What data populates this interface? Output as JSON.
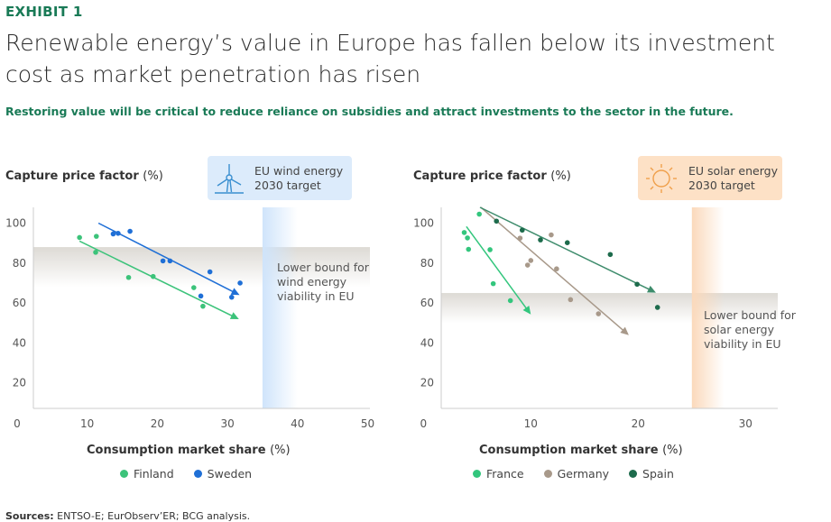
{
  "header": {
    "exhibit": "EXHIBIT 1",
    "title": "Renewable energy’s value in Europe has fallen below its investment cost as market penetration has risen",
    "subtitle": "Restoring value will be critical to reduce reliance on subsidies and attract investments to the sector in the future."
  },
  "sources": {
    "label": "Sources:",
    "text": " ENTSO-E; EurObserv’ER; BCG analysis."
  },
  "colors": {
    "brand_green": "#197a56",
    "finland": "#3cc37a",
    "sweden": "#1f6fd6",
    "france": "#33c67d",
    "germany": "#a8998a",
    "spain": "#1d6b4c",
    "spain_line": "#3e8c6c",
    "wind_band": "#cfe4fb",
    "solar_band": "#fbd9bb"
  },
  "chart_data": [
    {
      "type": "scatter",
      "ylabel": "Capture price factor",
      "ylabel_unit": "(%)",
      "xlabel": "Consumption market share",
      "xlabel_unit": "(%)",
      "xlim": [
        0,
        50
      ],
      "ylim": [
        0,
        100
      ],
      "xticks": [
        "0",
        "10",
        "20",
        "30",
        "40",
        "50"
      ],
      "yticks": [
        "20",
        "40",
        "60",
        "80",
        "100"
      ],
      "target": {
        "icon": "wind-turbine-icon",
        "line1": "EU wind energy",
        "line2": "2030 target",
        "x_range": [
          35,
          40
        ]
      },
      "lower_bound": {
        "line1": "Lower bound for",
        "line2": "wind energy",
        "line3": "viability in EU",
        "y_range": [
          68,
          88
        ]
      },
      "legend": [
        "Finland",
        "Sweden"
      ],
      "series": [
        {
          "name": "Finland",
          "color": "#3cc37a",
          "points": [
            [
              8.9,
              92.8
            ],
            [
              11.3,
              93.4
            ],
            [
              11.2,
              85.4
            ],
            [
              15.9,
              72.8
            ],
            [
              19.4,
              73.3
            ],
            [
              25.2,
              67.7
            ],
            [
              26.5,
              58.4
            ]
          ],
          "trend": [
            [
              8.9,
              91
            ],
            [
              31.4,
              52.3
            ]
          ]
        },
        {
          "name": "Sweden",
          "color": "#1f6fd6",
          "points": [
            [
              13.7,
              94.6
            ],
            [
              14.4,
              94.9
            ],
            [
              16.1,
              95.9
            ],
            [
              20.8,
              81.1
            ],
            [
              21.8,
              81.1
            ],
            [
              27.5,
              75.6
            ],
            [
              26.2,
              63.5
            ],
            [
              30.6,
              62.9
            ],
            [
              31.8,
              70
            ]
          ],
          "trend": [
            [
              11.6,
              100
            ],
            [
              31.5,
              64.4
            ]
          ]
        }
      ]
    },
    {
      "type": "scatter",
      "ylabel": "Capture price factor",
      "ylabel_unit": "(%)",
      "xlabel": "Consumption market share",
      "xlabel_unit": "(%)",
      "xlim": [
        0,
        33
      ],
      "ylim": [
        0,
        100
      ],
      "xticks": [
        "0",
        "10",
        "20",
        "30"
      ],
      "yticks": [
        "20",
        "40",
        "60",
        "80",
        "100"
      ],
      "target": {
        "icon": "sun-icon",
        "line1": "EU solar energy",
        "line2": "2030 target",
        "x_range": [
          25,
          28
        ]
      },
      "lower_bound": {
        "line1": "Lower bound for",
        "line2": "solar energy",
        "line3": "viability in EU",
        "y_range": [
          50,
          65
        ]
      },
      "legend": [
        "France",
        "Germany",
        "Spain"
      ],
      "series": [
        {
          "name": "France",
          "color": "#33c67d",
          "points": [
            [
              3.8,
              95.3
            ],
            [
              4.1,
              92.6
            ],
            [
              4.2,
              86.9
            ],
            [
              5.2,
              104.5
            ],
            [
              6.2,
              86.7
            ],
            [
              6.5,
              69.7
            ],
            [
              8.1,
              61.2
            ]
          ],
          "trend": [
            [
              4.0,
              98.3
            ],
            [
              9.9,
              55
            ]
          ]
        },
        {
          "name": "Germany",
          "color": "#a8998a",
          "points": [
            [
              9.0,
              92.5
            ],
            [
              11.9,
              94.1
            ],
            [
              9.7,
              79
            ],
            [
              10.0,
              81.3
            ],
            [
              12.4,
              77.1
            ],
            [
              13.7,
              61.7
            ],
            [
              16.3,
              54.6
            ]
          ],
          "trend": [
            [
              5.2,
              108.6
            ],
            [
              19.0,
              44.5
            ]
          ]
        },
        {
          "name": "Spain",
          "color": "#1d6b4c",
          "points": [
            [
              6.8,
              101
            ],
            [
              9.2,
              96.5
            ],
            [
              10.9,
              91.6
            ],
            [
              13.4,
              90.2
            ],
            [
              17.4,
              84.3
            ],
            [
              19.9,
              69.4
            ],
            [
              21.8,
              57.8
            ]
          ],
          "trend": [
            [
              5.0,
              108.6
            ],
            [
              21.5,
              65.6
            ]
          ]
        }
      ]
    }
  ]
}
